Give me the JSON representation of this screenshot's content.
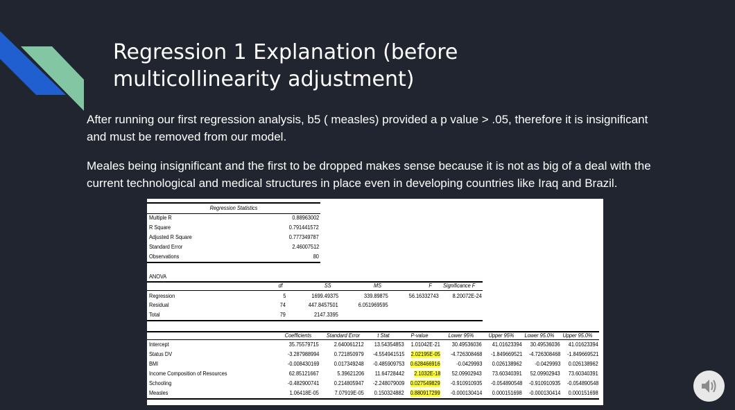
{
  "slide": {
    "title": "Regression 1 Explanation (before multicollinearity adjustment)",
    "paragraph_1": "After running our first regression analysis, b5 ( measles) provided a p value > .05, therefore it is insignificant and must be removed from our model.",
    "paragraph_2": "Meales being insignificant and the first to be dropped makes sense because it is not as big of a deal with the current technological and medical structures in place even in developing countries like Iraq and Brazil.",
    "accent_colors": {
      "blue": "#1f5fd0",
      "green": "#82c6a3",
      "background": "#212530"
    },
    "speaker_icon": "speaker-icon"
  },
  "regression_stats": {
    "header": "Regression Statistics",
    "rows": [
      {
        "label": "Multiple R",
        "value": "0.88963002"
      },
      {
        "label": "R Square",
        "value": "0.791441572"
      },
      {
        "label": "Adjusted R Square",
        "value": "0.777349787"
      },
      {
        "label": "Standard Error",
        "value": "2.46007512"
      },
      {
        "label": "Observations",
        "value": "80"
      }
    ]
  },
  "anova": {
    "title": "ANOVA",
    "headers": [
      "df",
      "SS",
      "MS",
      "F",
      "Significance F"
    ],
    "rows": [
      {
        "label": "Regression",
        "values": [
          "5",
          "1699.49375",
          "339.89875",
          "56.16332743",
          "8.20072E-24"
        ]
      },
      {
        "label": "Residual",
        "values": [
          "74",
          "447.8457501",
          "6.051969595",
          "",
          ""
        ]
      },
      {
        "label": "Total",
        "values": [
          "79",
          "2147.3395",
          "",
          "",
          ""
        ]
      }
    ]
  },
  "coefficients": {
    "headers": [
      "Coefficients",
      "Standard Error",
      "t Stat",
      "P-value",
      "Lower 95%",
      "Upper 95%",
      "Lower 95.0%",
      "Upper 95.0%"
    ],
    "rows": [
      {
        "label": "Intercept",
        "values": [
          "35.75579715",
          "2.640061212",
          "13.54354853",
          "1.01042E-21",
          "30.49536036",
          "41.01623394",
          "30.49536036",
          "41.01623394"
        ],
        "highlight_p": false
      },
      {
        "label": "Status DV",
        "values": [
          "-3.287988994",
          "0.721850979",
          "-4.554941515",
          "2.02195E-05",
          "-4.726308468",
          "-1.849669521",
          "-4.726308468",
          "-1.849669521"
        ],
        "highlight_p": true
      },
      {
        "label": "BMI",
        "values": [
          "-0.008430169",
          "0.017349248",
          "-0.485909753",
          "0.628466916",
          "-0.0429993",
          "0.026138962",
          "-0.0429993",
          "0.026138962"
        ],
        "highlight_p": true
      },
      {
        "label": "Income Composition of Resources",
        "values": [
          "62.85121667",
          "5.39621206",
          "11.64728442",
          "2.1032E-18",
          "52.09902943",
          "73.60340391",
          "52.09902943",
          "73.60340391"
        ],
        "highlight_p": true
      },
      {
        "label": "Schooling",
        "values": [
          "-0.482900741",
          "0.214805947",
          "-2.248079009",
          "0.027549829",
          "-0.910910935",
          "-0.054890548",
          "-0.910910935",
          "-0.054890548"
        ],
        "highlight_p": true
      },
      {
        "label": "Measles",
        "values": [
          "1.06418E-05",
          "7.07919E-05",
          "0.150324882",
          "0.880917299",
          "-0.000130414",
          "0.000151698",
          "-0.000130414",
          "0.000151698"
        ],
        "highlight_p": true
      }
    ]
  }
}
